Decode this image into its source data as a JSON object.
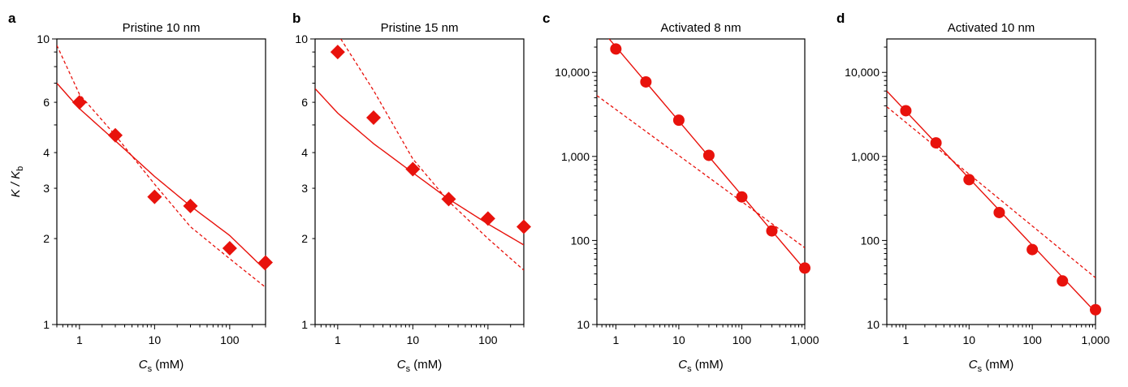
{
  "chart_data": [
    {
      "type": "scatter",
      "panel": "a",
      "title": "Pristine 10 nm",
      "xlabel": "C",
      "xlabel_sub": "s",
      "xlabel_unit": " (mM)",
      "ylabel": "K / K",
      "ylabel_sub": "b",
      "xscale": "log",
      "yscale": "log",
      "xlim": [
        0.5,
        300
      ],
      "ylim": [
        1,
        10
      ],
      "xticks": [
        {
          "v": 1,
          "label": "1"
        },
        {
          "v": 10,
          "label": "10"
        },
        {
          "v": 100,
          "label": "100"
        }
      ],
      "yticks": [
        {
          "v": 1,
          "label": "1"
        },
        {
          "v": 2,
          "label": "2"
        },
        {
          "v": 3,
          "label": "3"
        },
        {
          "v": 4,
          "label": "4"
        },
        {
          "v": 6,
          "label": "6"
        },
        {
          "v": 10,
          "label": "10"
        }
      ],
      "marker": "diamond",
      "points": {
        "x": [
          1,
          3,
          10,
          30,
          100,
          300
        ],
        "y": [
          6.0,
          4.6,
          2.8,
          2.6,
          1.85,
          1.65
        ]
      },
      "solid_fit": {
        "x": [
          0.5,
          1,
          3,
          10,
          30,
          100,
          300
        ],
        "y": [
          7.0,
          5.7,
          4.4,
          3.3,
          2.6,
          2.05,
          1.55
        ]
      },
      "dashed_fit": {
        "x": [
          0.5,
          1,
          3,
          10,
          30,
          100,
          300
        ],
        "y": [
          9.5,
          6.4,
          4.6,
          3.1,
          2.2,
          1.7,
          1.35
        ]
      },
      "colors": {
        "series": "#e8120c"
      }
    },
    {
      "type": "scatter",
      "panel": "b",
      "title": "Pristine 15 nm",
      "xlabel": "C",
      "xlabel_sub": "s",
      "xlabel_unit": " (mM)",
      "ylabel": "",
      "ylabel_sub": "",
      "xscale": "log",
      "yscale": "log",
      "xlim": [
        0.5,
        300
      ],
      "ylim": [
        1,
        10
      ],
      "xticks": [
        {
          "v": 1,
          "label": "1"
        },
        {
          "v": 10,
          "label": "10"
        },
        {
          "v": 100,
          "label": "100"
        }
      ],
      "yticks": [
        {
          "v": 1,
          "label": "1"
        },
        {
          "v": 2,
          "label": "2"
        },
        {
          "v": 3,
          "label": "3"
        },
        {
          "v": 4,
          "label": "4"
        },
        {
          "v": 6,
          "label": "6"
        },
        {
          "v": 10,
          "label": "10"
        }
      ],
      "marker": "diamond",
      "points": {
        "x": [
          1,
          3,
          10,
          30,
          100,
          300
        ],
        "y": [
          9.0,
          5.3,
          3.5,
          2.75,
          2.35,
          2.2
        ]
      },
      "solid_fit": {
        "x": [
          0.5,
          1,
          3,
          10,
          30,
          100,
          300
        ],
        "y": [
          6.7,
          5.5,
          4.3,
          3.4,
          2.75,
          2.25,
          1.9
        ]
      },
      "dashed_fit": {
        "x": [
          1.1,
          3,
          10,
          30,
          100,
          300
        ],
        "y": [
          10,
          6.6,
          3.8,
          2.7,
          2.0,
          1.55
        ]
      },
      "colors": {
        "series": "#e8120c"
      }
    },
    {
      "type": "scatter",
      "panel": "c",
      "title": "Activated 8 nm",
      "xlabel": "C",
      "xlabel_sub": "s",
      "xlabel_unit": " (mM)",
      "ylabel": "",
      "ylabel_sub": "",
      "xscale": "log",
      "yscale": "log",
      "xlim": [
        0.5,
        1000
      ],
      "ylim": [
        10,
        25000
      ],
      "xticks": [
        {
          "v": 1,
          "label": "1"
        },
        {
          "v": 10,
          "label": "10"
        },
        {
          "v": 100,
          "label": "100"
        },
        {
          "v": 1000,
          "label": "1,000"
        }
      ],
      "yticks": [
        {
          "v": 10,
          "label": "10"
        },
        {
          "v": 100,
          "label": "100"
        },
        {
          "v": 1000,
          "label": "1,000"
        },
        {
          "v": 10000,
          "label": "10,000"
        }
      ],
      "marker": "circle",
      "points": {
        "x": [
          1,
          3,
          10,
          30,
          100,
          300,
          1000
        ],
        "y": [
          19000,
          7700,
          2700,
          1030,
          330,
          130,
          47
        ]
      },
      "solid_fit": {
        "x": [
          0.75,
          1000
        ],
        "y": [
          26000,
          45
        ]
      },
      "dashed_fit": {
        "x": [
          0.5,
          1000
        ],
        "y": [
          5300,
          82
        ]
      },
      "colors": {
        "series": "#e8120c"
      }
    },
    {
      "type": "scatter",
      "panel": "d",
      "title": "Activated 10 nm",
      "xlabel": "C",
      "xlabel_sub": "s",
      "xlabel_unit": " (mM)",
      "ylabel": "",
      "ylabel_sub": "",
      "xscale": "log",
      "yscale": "log",
      "xlim": [
        0.5,
        1000
      ],
      "ylim": [
        10,
        25000
      ],
      "xticks": [
        {
          "v": 1,
          "label": "1"
        },
        {
          "v": 10,
          "label": "10"
        },
        {
          "v": 100,
          "label": "100"
        },
        {
          "v": 1000,
          "label": "1,000"
        }
      ],
      "yticks": [
        {
          "v": 10,
          "label": "10"
        },
        {
          "v": 100,
          "label": "100"
        },
        {
          "v": 1000,
          "label": "1,000"
        },
        {
          "v": 10000,
          "label": "10,000"
        }
      ],
      "marker": "circle",
      "points": {
        "x": [
          1,
          3,
          10,
          30,
          100,
          300,
          1000
        ],
        "y": [
          3500,
          1450,
          530,
          215,
          78,
          33,
          15
        ]
      },
      "solid_fit": {
        "x": [
          0.5,
          1000
        ],
        "y": [
          6000,
          14
        ]
      },
      "dashed_fit": {
        "x": [
          0.5,
          1000
        ],
        "y": [
          3900,
          36
        ]
      },
      "colors": {
        "series": "#e8120c"
      }
    }
  ]
}
